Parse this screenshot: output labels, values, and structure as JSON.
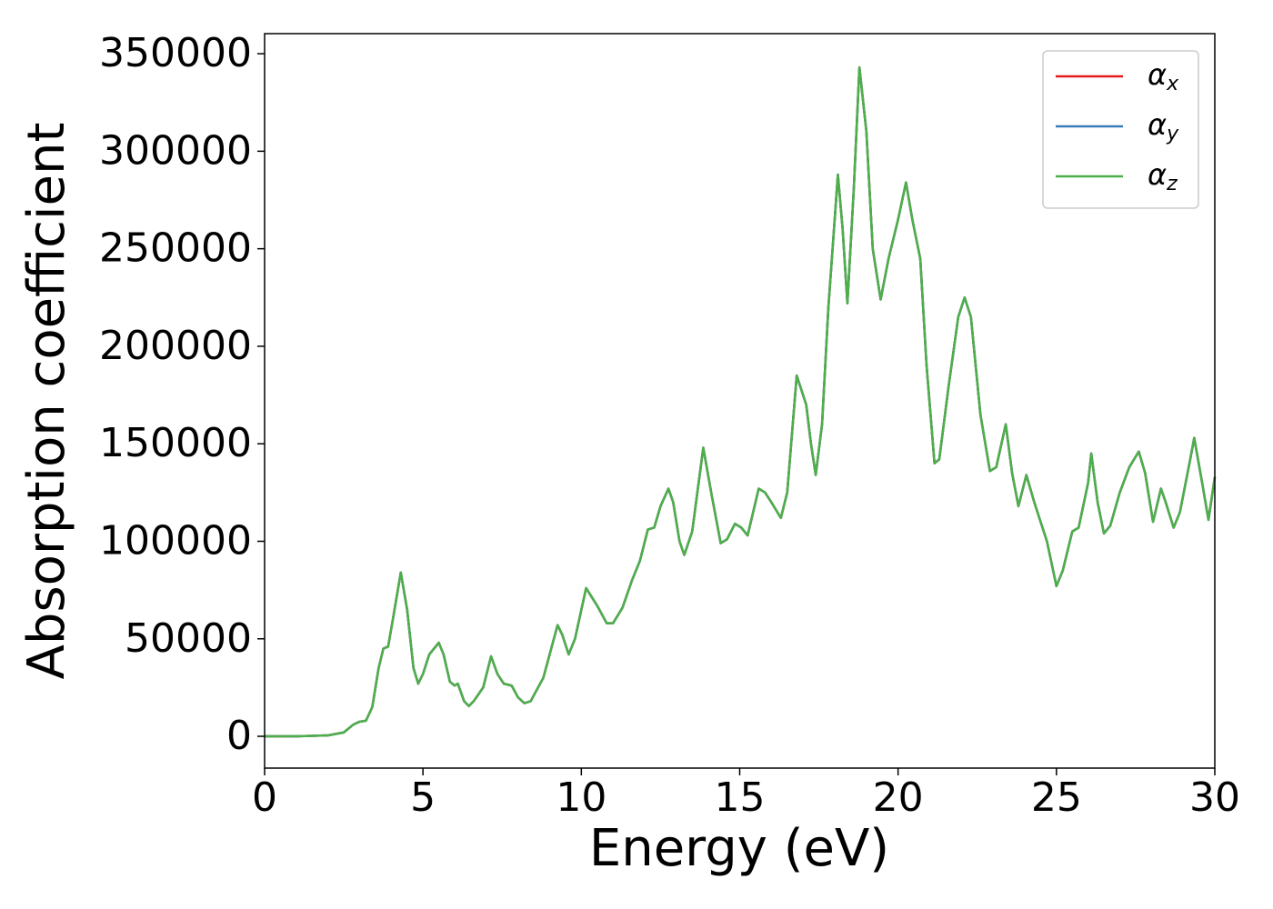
{
  "chart_data": {
    "type": "line",
    "xlabel": "Energy (eV)",
    "ylabel": "Absorption coefficient",
    "xlim": [
      0,
      30
    ],
    "xticks": [
      0,
      5,
      10,
      15,
      20,
      25,
      30
    ],
    "ylim": [
      -16300,
      360300
    ],
    "yticks": [
      0,
      50000,
      100000,
      150000,
      200000,
      250000,
      300000,
      350000
    ],
    "legend": "upper right",
    "x": [
      0,
      1,
      2,
      2.5,
      2.8,
      3.0,
      3.2,
      3.4,
      3.6,
      3.75,
      3.9,
      4.05,
      4.3,
      4.5,
      4.7,
      4.85,
      5.0,
      5.2,
      5.5,
      5.65,
      5.85,
      6.0,
      6.1,
      6.3,
      6.45,
      6.6,
      6.9,
      7.15,
      7.35,
      7.55,
      7.8,
      8.0,
      8.2,
      8.4,
      8.8,
      9.25,
      9.4,
      9.6,
      9.8,
      10.15,
      10.5,
      10.8,
      11.0,
      11.3,
      11.6,
      11.85,
      12.1,
      12.3,
      12.5,
      12.75,
      12.9,
      13.1,
      13.25,
      13.5,
      13.85,
      14.1,
      14.4,
      14.6,
      14.85,
      15.05,
      15.25,
      15.6,
      15.8,
      16.0,
      16.3,
      16.5,
      16.8,
      17.1,
      17.25,
      17.4,
      17.6,
      17.8,
      18.1,
      18.25,
      18.4,
      18.6,
      18.78,
      19.0,
      19.2,
      19.45,
      19.7,
      20.0,
      20.25,
      20.45,
      20.7,
      20.9,
      21.15,
      21.3,
      21.6,
      21.9,
      22.1,
      22.3,
      22.6,
      22.9,
      23.1,
      23.4,
      23.6,
      23.8,
      24.05,
      24.3,
      24.7,
      25.0,
      25.2,
      25.5,
      25.7,
      26.0,
      26.1,
      26.3,
      26.5,
      26.7,
      27.0,
      27.3,
      27.6,
      27.8,
      28.05,
      28.3,
      28.45,
      28.7,
      28.9,
      29.2,
      29.35,
      29.6,
      29.8,
      30
    ],
    "series": [
      {
        "name": "αx",
        "color": "#e41a1c",
        "values": [
          0,
          0,
          500,
          2000,
          6000,
          7500,
          8000,
          15000,
          35000,
          45000,
          46000,
          60000,
          84000,
          65000,
          35000,
          27000,
          32000,
          42000,
          48000,
          42000,
          28000,
          26000,
          27000,
          18000,
          15500,
          18000,
          25000,
          41000,
          32000,
          27000,
          26000,
          20000,
          17000,
          18000,
          30000,
          57000,
          52000,
          42000,
          50000,
          76000,
          67000,
          58000,
          58000,
          66000,
          80000,
          90000,
          106000,
          107000,
          118000,
          127000,
          120000,
          100000,
          93000,
          105000,
          148000,
          125000,
          99000,
          101000,
          109000,
          107000,
          103000,
          127000,
          125000,
          120000,
          112000,
          125000,
          185000,
          170000,
          150000,
          134000,
          160000,
          220000,
          288000,
          260000,
          222000,
          280000,
          343000,
          310000,
          250000,
          224000,
          245000,
          265000,
          284000,
          265000,
          245000,
          190000,
          140000,
          142000,
          180000,
          215000,
          225000,
          215000,
          165000,
          136000,
          138000,
          160000,
          135000,
          118000,
          134000,
          120000,
          100000,
          77000,
          85000,
          105000,
          107000,
          130000,
          145000,
          120000,
          104000,
          108000,
          125000,
          138000,
          146000,
          135000,
          110000,
          127000,
          120000,
          107000,
          115000,
          140000,
          153000,
          130000,
          111000,
          133000
        ]
      },
      {
        "name": "αy",
        "color": "#377eb8",
        "values": [
          0,
          0,
          500,
          2000,
          6000,
          7500,
          8000,
          15000,
          35000,
          45000,
          46000,
          60000,
          84000,
          65000,
          35000,
          27000,
          32000,
          42000,
          48000,
          42000,
          28000,
          26000,
          27000,
          18000,
          15500,
          18000,
          25000,
          41000,
          32000,
          27000,
          26000,
          20000,
          17000,
          18000,
          30000,
          57000,
          52000,
          42000,
          50000,
          76000,
          67000,
          58000,
          58000,
          66000,
          80000,
          90000,
          106000,
          107000,
          118000,
          127000,
          120000,
          100000,
          93000,
          105000,
          148000,
          125000,
          99000,
          101000,
          109000,
          107000,
          103000,
          127000,
          125000,
          120000,
          112000,
          125000,
          185000,
          170000,
          150000,
          134000,
          160000,
          220000,
          288000,
          260000,
          222000,
          280000,
          343000,
          310000,
          250000,
          224000,
          245000,
          265000,
          284000,
          265000,
          245000,
          190000,
          140000,
          142000,
          180000,
          215000,
          225000,
          215000,
          165000,
          136000,
          138000,
          160000,
          135000,
          118000,
          134000,
          120000,
          100000,
          77000,
          85000,
          105000,
          107000,
          130000,
          145000,
          120000,
          104000,
          108000,
          125000,
          138000,
          146000,
          135000,
          110000,
          127000,
          120000,
          107000,
          115000,
          140000,
          153000,
          130000,
          111000,
          133000
        ]
      },
      {
        "name": "αz",
        "color": "#4daf4a",
        "values": [
          0,
          0,
          500,
          2000,
          6000,
          7500,
          8000,
          15000,
          35000,
          45000,
          46000,
          60000,
          84000,
          65000,
          35000,
          27000,
          32000,
          42000,
          48000,
          42000,
          28000,
          26000,
          27000,
          18000,
          15500,
          18000,
          25000,
          41000,
          32000,
          27000,
          26000,
          20000,
          17000,
          18000,
          30000,
          57000,
          52000,
          42000,
          50000,
          76000,
          67000,
          58000,
          58000,
          66000,
          80000,
          90000,
          106000,
          107000,
          118000,
          127000,
          120000,
          100000,
          93000,
          105000,
          148000,
          125000,
          99000,
          101000,
          109000,
          107000,
          103000,
          127000,
          125000,
          120000,
          112000,
          125000,
          185000,
          170000,
          150000,
          134000,
          160000,
          220000,
          288000,
          260000,
          222000,
          280000,
          343000,
          310000,
          250000,
          224000,
          245000,
          265000,
          284000,
          265000,
          245000,
          190000,
          140000,
          142000,
          180000,
          215000,
          225000,
          215000,
          165000,
          136000,
          138000,
          160000,
          135000,
          118000,
          134000,
          120000,
          100000,
          77000,
          85000,
          105000,
          107000,
          130000,
          145000,
          120000,
          104000,
          108000,
          125000,
          138000,
          146000,
          135000,
          110000,
          127000,
          120000,
          107000,
          115000,
          140000,
          153000,
          130000,
          111000,
          133000
        ]
      }
    ]
  }
}
